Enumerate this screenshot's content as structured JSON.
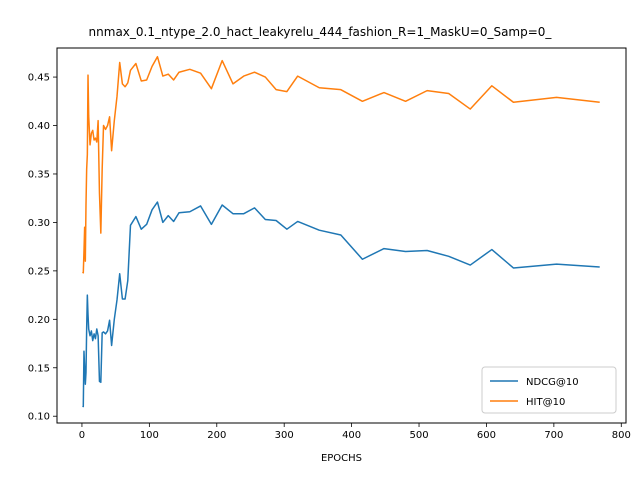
{
  "chart_data": {
    "type": "line",
    "title": "nnmax_0.1_ntype_2.0_hact_leakyrelu_444_fashion_R=1_MaskU=0_Samp=0_",
    "xlabel": "EPOCHS",
    "ylabel": "",
    "xlim": [
      -37,
      807
    ],
    "ylim": [
      0.093,
      0.48
    ],
    "xticks": [
      0,
      100,
      200,
      300,
      400,
      500,
      600,
      700,
      800
    ],
    "yticks": [
      0.1,
      0.15,
      0.2,
      0.25,
      0.3,
      0.35,
      0.4,
      0.45
    ],
    "ytick_labels": [
      "0.10",
      "0.15",
      "0.20",
      "0.25",
      "0.30",
      "0.35",
      "0.40",
      "0.45"
    ],
    "grid": false,
    "legend_position": "lower-right",
    "series": [
      {
        "name": "NDCG@10",
        "color": "#1f77b4",
        "x": [
          1,
          2,
          3,
          4,
          5,
          6,
          7,
          8,
          9,
          10,
          12,
          14,
          16,
          18,
          20,
          22,
          24,
          26,
          28,
          30,
          32,
          35,
          38,
          41,
          44,
          48,
          52,
          56,
          60,
          64,
          68,
          72,
          80,
          88,
          96,
          104,
          112,
          120,
          128,
          136,
          144,
          160,
          176,
          192,
          208,
          224,
          240,
          256,
          272,
          288,
          304,
          320,
          352,
          384,
          416,
          448,
          480,
          512,
          544,
          576,
          608,
          640,
          704,
          768
        ],
        "y": [
          0.111,
          0.11,
          0.167,
          0.15,
          0.133,
          0.145,
          0.19,
          0.225,
          0.205,
          0.19,
          0.183,
          0.188,
          0.178,
          0.185,
          0.18,
          0.19,
          0.183,
          0.136,
          0.135,
          0.186,
          0.187,
          0.185,
          0.188,
          0.199,
          0.173,
          0.2,
          0.22,
          0.247,
          0.221,
          0.221,
          0.24,
          0.297,
          0.306,
          0.293,
          0.298,
          0.313,
          0.321,
          0.3,
          0.307,
          0.301,
          0.31,
          0.311,
          0.317,
          0.298,
          0.318,
          0.309,
          0.309,
          0.315,
          0.303,
          0.302,
          0.293,
          0.301,
          0.292,
          0.287,
          0.262,
          0.273,
          0.27,
          0.271,
          0.265,
          0.256,
          0.272,
          0.253,
          0.257,
          0.254
        ]
      },
      {
        "name": "HIT@10",
        "color": "#ff7f0e",
        "x": [
          1,
          2,
          3,
          4,
          5,
          6,
          7,
          8,
          9,
          10,
          12,
          14,
          16,
          18,
          20,
          22,
          24,
          26,
          28,
          30,
          32,
          35,
          38,
          41,
          44,
          48,
          52,
          56,
          60,
          64,
          68,
          72,
          80,
          88,
          96,
          104,
          112,
          120,
          128,
          136,
          144,
          160,
          176,
          192,
          208,
          224,
          240,
          256,
          272,
          288,
          304,
          320,
          352,
          384,
          416,
          448,
          480,
          512,
          544,
          576,
          608,
          640,
          704,
          768
        ],
        "y": [
          0.249,
          0.248,
          0.27,
          0.295,
          0.26,
          0.318,
          0.355,
          0.37,
          0.452,
          0.41,
          0.38,
          0.392,
          0.395,
          0.385,
          0.387,
          0.383,
          0.405,
          0.33,
          0.289,
          0.355,
          0.4,
          0.396,
          0.4,
          0.409,
          0.374,
          0.405,
          0.43,
          0.465,
          0.443,
          0.44,
          0.444,
          0.457,
          0.464,
          0.446,
          0.447,
          0.461,
          0.471,
          0.451,
          0.453,
          0.447,
          0.455,
          0.458,
          0.454,
          0.438,
          0.467,
          0.443,
          0.451,
          0.455,
          0.45,
          0.437,
          0.435,
          0.451,
          0.439,
          0.437,
          0.425,
          0.434,
          0.425,
          0.436,
          0.433,
          0.417,
          0.441,
          0.424,
          0.429,
          0.424
        ]
      }
    ]
  }
}
